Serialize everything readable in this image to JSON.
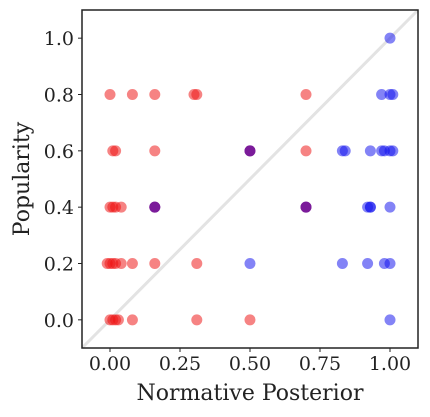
{
  "chart_data": {
    "type": "scatter",
    "title": "",
    "xlabel": "Normative Posterior",
    "ylabel": "Popularity",
    "xlim": [
      -0.1,
      1.1
    ],
    "ylim": [
      -0.1,
      1.1
    ],
    "xticks": [
      0.0,
      0.25,
      0.5,
      0.75,
      1.0
    ],
    "xtick_labels": [
      "0.00",
      "0.25",
      "0.50",
      "0.75",
      "1.00"
    ],
    "yticks": [
      0.0,
      0.2,
      0.4,
      0.6,
      0.8,
      1.0
    ],
    "ytick_labels": [
      "0.0",
      "0.2",
      "0.4",
      "0.6",
      "0.8",
      "1.0"
    ],
    "grid": false,
    "reference_line": {
      "from": [
        -0.1,
        -0.1
      ],
      "to": [
        1.1,
        1.1
      ],
      "color": "#e3e3e3"
    },
    "colors": {
      "red": "#ee1111",
      "blue": "#1111ee",
      "purple": "#7a1a99"
    },
    "points": [
      {
        "x": 0.0,
        "y": 0.8,
        "c": "red"
      },
      {
        "x": 0.08,
        "y": 0.8,
        "c": "red"
      },
      {
        "x": 0.16,
        "y": 0.8,
        "c": "red"
      },
      {
        "x": 0.3,
        "y": 0.8,
        "c": "red"
      },
      {
        "x": 0.31,
        "y": 0.8,
        "c": "red"
      },
      {
        "x": 0.7,
        "y": 0.8,
        "c": "red"
      },
      {
        "x": 0.97,
        "y": 0.8,
        "c": "blue"
      },
      {
        "x": 1.0,
        "y": 0.8,
        "c": "blue"
      },
      {
        "x": 1.01,
        "y": 0.8,
        "c": "blue"
      },
      {
        "x": 1.0,
        "y": 1.0,
        "c": "blue"
      },
      {
        "x": 0.01,
        "y": 0.6,
        "c": "red"
      },
      {
        "x": 0.02,
        "y": 0.6,
        "c": "red"
      },
      {
        "x": 0.16,
        "y": 0.6,
        "c": "red"
      },
      {
        "x": 0.5,
        "y": 0.6,
        "c": "purple"
      },
      {
        "x": 0.5,
        "y": 0.6,
        "c": "purple"
      },
      {
        "x": 0.7,
        "y": 0.6,
        "c": "red"
      },
      {
        "x": 0.84,
        "y": 0.6,
        "c": "blue"
      },
      {
        "x": 0.83,
        "y": 0.6,
        "c": "blue"
      },
      {
        "x": 0.93,
        "y": 0.6,
        "c": "blue"
      },
      {
        "x": 0.97,
        "y": 0.6,
        "c": "blue"
      },
      {
        "x": 0.98,
        "y": 0.6,
        "c": "blue"
      },
      {
        "x": 1.0,
        "y": 0.6,
        "c": "blue"
      },
      {
        "x": 1.01,
        "y": 0.6,
        "c": "blue"
      },
      {
        "x": 0.0,
        "y": 0.4,
        "c": "red"
      },
      {
        "x": 0.01,
        "y": 0.4,
        "c": "red"
      },
      {
        "x": 0.02,
        "y": 0.4,
        "c": "red"
      },
      {
        "x": 0.04,
        "y": 0.4,
        "c": "red"
      },
      {
        "x": 0.16,
        "y": 0.4,
        "c": "purple"
      },
      {
        "x": 0.16,
        "y": 0.4,
        "c": "purple"
      },
      {
        "x": 0.7,
        "y": 0.4,
        "c": "purple"
      },
      {
        "x": 0.7,
        "y": 0.4,
        "c": "purple"
      },
      {
        "x": 0.92,
        "y": 0.4,
        "c": "blue"
      },
      {
        "x": 0.93,
        "y": 0.4,
        "c": "blue"
      },
      {
        "x": 0.93,
        "y": 0.4,
        "c": "blue"
      },
      {
        "x": 1.0,
        "y": 0.4,
        "c": "blue"
      },
      {
        "x": -0.01,
        "y": 0.2,
        "c": "red"
      },
      {
        "x": 0.0,
        "y": 0.2,
        "c": "red"
      },
      {
        "x": 0.01,
        "y": 0.2,
        "c": "red"
      },
      {
        "x": 0.02,
        "y": 0.2,
        "c": "red"
      },
      {
        "x": 0.04,
        "y": 0.2,
        "c": "red"
      },
      {
        "x": 0.08,
        "y": 0.2,
        "c": "red"
      },
      {
        "x": 0.16,
        "y": 0.2,
        "c": "red"
      },
      {
        "x": 0.31,
        "y": 0.2,
        "c": "red"
      },
      {
        "x": 0.5,
        "y": 0.2,
        "c": "blue"
      },
      {
        "x": 0.83,
        "y": 0.2,
        "c": "blue"
      },
      {
        "x": 0.92,
        "y": 0.2,
        "c": "blue"
      },
      {
        "x": 0.98,
        "y": 0.2,
        "c": "blue"
      },
      {
        "x": 1.0,
        "y": 0.2,
        "c": "blue"
      },
      {
        "x": 0.0,
        "y": 0.0,
        "c": "red"
      },
      {
        "x": 0.01,
        "y": 0.0,
        "c": "red"
      },
      {
        "x": 0.02,
        "y": 0.0,
        "c": "red"
      },
      {
        "x": 0.03,
        "y": 0.0,
        "c": "red"
      },
      {
        "x": 0.08,
        "y": 0.0,
        "c": "red"
      },
      {
        "x": 0.31,
        "y": 0.0,
        "c": "red"
      },
      {
        "x": 0.5,
        "y": 0.0,
        "c": "red"
      },
      {
        "x": 1.0,
        "y": 0.0,
        "c": "blue"
      }
    ]
  }
}
